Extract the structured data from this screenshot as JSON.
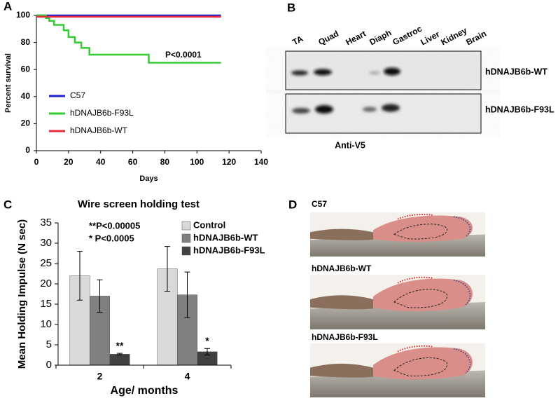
{
  "panel_labels": [
    "A",
    "B",
    "C",
    "D"
  ],
  "chart_data": [
    {
      "type": "line",
      "x_label": "Days",
      "y_label": "Percent survival",
      "xlim": [
        0,
        140
      ],
      "xticks": [
        0,
        20,
        40,
        60,
        80,
        100,
        120,
        140
      ],
      "ylim": [
        0,
        100
      ],
      "yticks": [
        0,
        20,
        40,
        60,
        80,
        100
      ],
      "legend": "left",
      "series": [
        {
          "name": "C57",
          "color": "#1f1fd6",
          "x": [
            0,
            115
          ],
          "values": [
            100,
            100
          ]
        },
        {
          "name": "hDNAJB6b-F93L",
          "color": "#33cc33",
          "x": [
            0,
            6,
            6,
            8,
            8,
            11,
            11,
            17,
            17,
            20,
            20,
            24,
            24,
            28,
            28,
            33,
            33,
            70,
            70,
            115
          ],
          "values": [
            100,
            100,
            98,
            98,
            96,
            96,
            93,
            93,
            89,
            89,
            84,
            84,
            80,
            80,
            76,
            76,
            71,
            71,
            65,
            65
          ]
        },
        {
          "name": "hDNAJB6b-WT",
          "color": "#e8283c",
          "x": [
            0,
            115
          ],
          "values": [
            99,
            99
          ]
        }
      ],
      "annotations": [
        "P<0.0001"
      ]
    },
    {
      "type": "bar",
      "title": "Wire screen holding test",
      "x_label": "Age/ months",
      "y_label": "Mean Holding Impulse (N sec)",
      "categories": [
        "2",
        "4"
      ],
      "ylim": [
        0,
        35
      ],
      "yticks": [
        0,
        5,
        10,
        15,
        20,
        25,
        30,
        35
      ],
      "legend": "upper right",
      "series": [
        {
          "name": "Control",
          "color": "#d9d9d9",
          "values": [
            22,
            23.7
          ],
          "errors": [
            6,
            5.5
          ]
        },
        {
          "name": "hDNAJB6b-WT",
          "color": "#808080",
          "values": [
            17,
            17.3
          ],
          "errors": [
            4,
            5.6
          ]
        },
        {
          "name": "hDNAJB6b-F93L",
          "color": "#404040",
          "values": [
            2.7,
            3.3
          ],
          "errors": [
            0.2,
            0.8
          ],
          "significance": [
            "**",
            "*"
          ]
        }
      ],
      "annotations": [
        "**P<0.00005",
        "* P<0.0005"
      ]
    }
  ],
  "blot": {
    "lanes": [
      "TA",
      "Quad",
      "Heart",
      "Diaph",
      "Gastroc",
      "Liver",
      "Kidney",
      "Brain"
    ],
    "rows": [
      "hDNAJB6b-WT",
      "hDNAJB6b-F93L"
    ],
    "antibody": "Anti-V5"
  },
  "photos": {
    "labels": [
      "C57",
      "hDNAJB6b-WT",
      "hDNAJB6b-F93L"
    ]
  }
}
